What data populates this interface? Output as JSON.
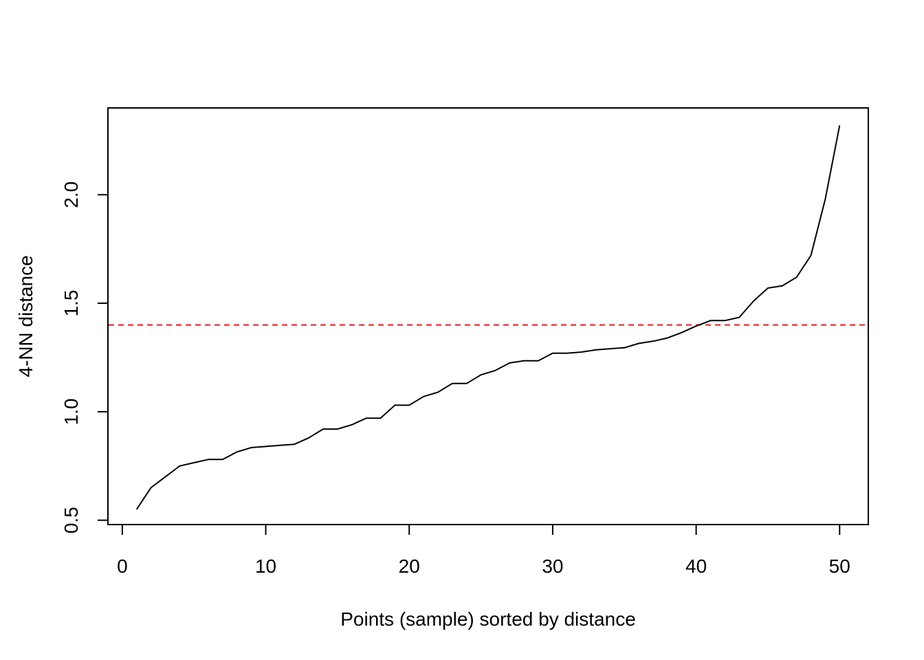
{
  "chart_data": {
    "type": "line",
    "title": "",
    "xlabel": "Points (sample) sorted by distance",
    "ylabel": "4-NN distance",
    "xlim": [
      -1,
      52
    ],
    "ylim": [
      0.48,
      2.4
    ],
    "xticks": [
      0,
      10,
      20,
      30,
      40,
      50
    ],
    "xtick_labels": [
      "0",
      "10",
      "20",
      "30",
      "40",
      "50"
    ],
    "yticks": [
      0.5,
      1.0,
      1.5,
      2.0
    ],
    "ytick_labels": [
      "0.5",
      "1.0",
      "1.5",
      "2.0"
    ],
    "grid": false,
    "series": [
      {
        "color": "#000000",
        "x": [
          1,
          2,
          3,
          4,
          5,
          6,
          7,
          8,
          9,
          10,
          11,
          12,
          13,
          14,
          15,
          16,
          17,
          18,
          19,
          20,
          21,
          22,
          23,
          24,
          25,
          26,
          27,
          28,
          29,
          30,
          31,
          32,
          33,
          34,
          35,
          36,
          37,
          38,
          39,
          40,
          41,
          42,
          43,
          44,
          45,
          46,
          47,
          48,
          49,
          50
        ],
        "values": [
          0.55,
          0.65,
          0.7,
          0.75,
          0.765,
          0.78,
          0.78,
          0.815,
          0.835,
          0.84,
          0.845,
          0.85,
          0.88,
          0.92,
          0.92,
          0.94,
          0.97,
          0.97,
          1.03,
          1.03,
          1.07,
          1.09,
          1.13,
          1.13,
          1.17,
          1.19,
          1.225,
          1.235,
          1.235,
          1.27,
          1.27,
          1.275,
          1.285,
          1.29,
          1.295,
          1.315,
          1.325,
          1.34,
          1.365,
          1.395,
          1.42,
          1.42,
          1.435,
          1.51,
          1.57,
          1.58,
          1.62,
          1.72,
          1.98,
          2.32
        ]
      }
    ],
    "reference_line": {
      "orientation": "horizontal",
      "y": 1.4,
      "color": "#e31a1c",
      "style": "dashed"
    }
  }
}
